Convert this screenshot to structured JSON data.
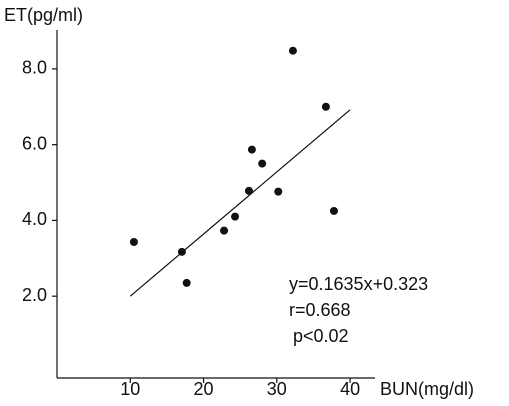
{
  "chart_data": {
    "type": "scatter",
    "y_label": "ET(pg/ml)",
    "x_label": "BUN(mg/dl)",
    "x": [
      10.5,
      17.05,
      17.7,
      22.8,
      24.3,
      26.2,
      26.6,
      28.0,
      30.2,
      32.2,
      36.7,
      37.8
    ],
    "values": [
      3.43,
      3.17,
      2.35,
      3.73,
      4.1,
      4.78,
      5.87,
      5.5,
      4.76,
      8.48,
      7.0,
      4.25
    ],
    "color": "#111111",
    "fit": {
      "x": [
        10,
        40
      ],
      "y": [
        2.0,
        6.92
      ]
    },
    "annotations": [
      "y=0.1635x+0.323",
      "r=0.668",
      "p<0.02"
    ],
    "xlim": [
      0,
      43.4
    ],
    "ylim": [
      -0.16,
      9
    ],
    "xticks": [
      10,
      20,
      30,
      40
    ],
    "yticks": [
      {
        "value": 2,
        "label": "2.0"
      },
      {
        "value": 4,
        "label": "4.0"
      },
      {
        "value": 6,
        "label": "6.0"
      },
      {
        "value": 8,
        "label": "8.0"
      }
    ]
  }
}
